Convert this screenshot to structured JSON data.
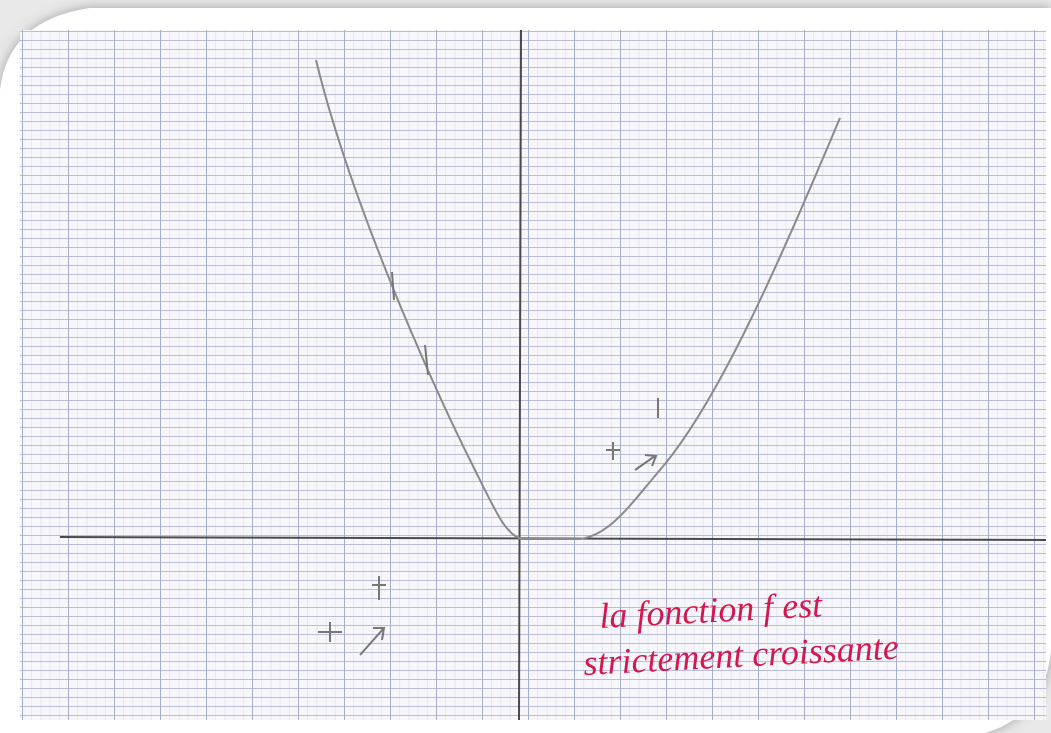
{
  "annotation": {
    "lines": [
      "la fonction f est",
      "strictement croissante"
    ]
  }
}
